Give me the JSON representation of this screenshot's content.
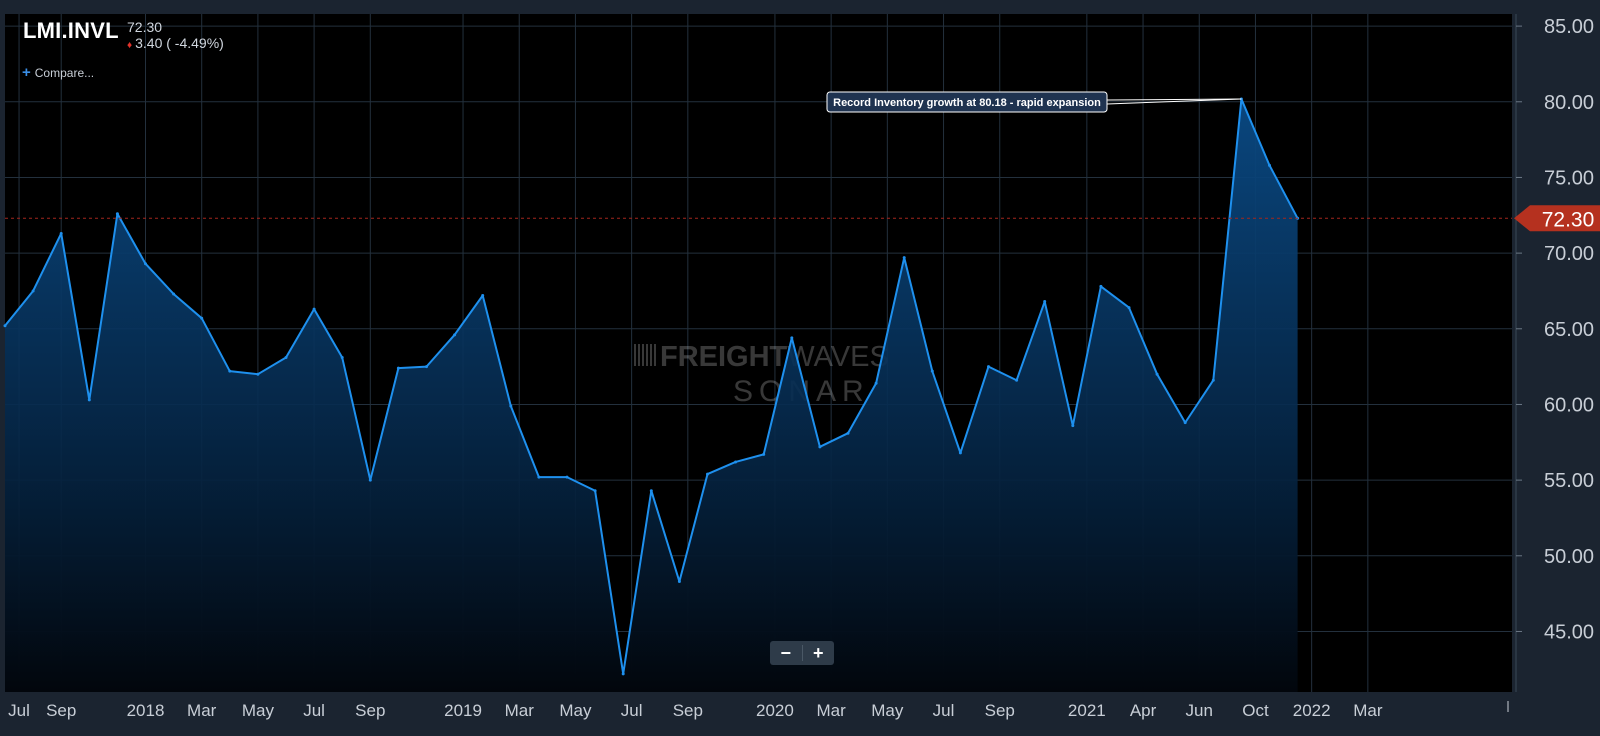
{
  "header": {
    "symbol": "LMI.INVL",
    "last_price": "72.30",
    "change": "3.40 ( -4.49%)",
    "compare_label": "Compare..."
  },
  "zoom": {
    "minus_label": "−",
    "plus_label": "+"
  },
  "watermark": {
    "line1_bold": "FREIGHT",
    "line1_light": "WAVES",
    "line2": "SONAR"
  },
  "colors": {
    "background": "#000000",
    "frame": "#1b2430",
    "line": "#1e90ee",
    "grid": "#23303d",
    "reference_line": "#a3261d",
    "price_tag": "#b5311f",
    "axis_text": "#c8ced6"
  },
  "chart_data": {
    "type": "area",
    "series": [
      {
        "values": [
          65.2,
          67.5,
          71.3,
          60.3,
          72.6,
          69.3,
          67.3,
          65.7,
          62.2,
          62.0,
          63.1,
          66.3,
          63.1,
          55.0,
          62.4,
          62.5,
          64.6,
          67.2,
          59.9,
          55.2,
          55.2,
          54.3,
          42.2,
          54.3,
          48.3,
          55.4,
          56.2,
          56.7,
          64.4,
          57.2,
          58.1,
          61.4,
          69.7,
          62.2,
          56.8,
          62.5,
          61.6,
          66.8,
          58.6,
          67.8,
          66.4,
          62.0,
          58.8,
          61.6,
          80.18,
          75.8,
          72.3
        ]
      }
    ],
    "y_axis": {
      "min": 41,
      "max": 85.8,
      "ticks": [
        "45.00",
        "50.00",
        "55.00",
        "60.00",
        "65.00",
        "70.00",
        "75.00",
        "80.00",
        "85.00"
      ]
    },
    "x_axis": {
      "ticks": [
        {
          "label": "Jul",
          "i": 0.5
        },
        {
          "label": "Sep",
          "i": 2
        },
        {
          "label": "2018",
          "i": 5
        },
        {
          "label": "Mar",
          "i": 7
        },
        {
          "label": "May",
          "i": 9
        },
        {
          "label": "Jul",
          "i": 11
        },
        {
          "label": "Sep",
          "i": 13
        },
        {
          "label": "2019",
          "i": 16.3
        },
        {
          "label": "Mar",
          "i": 18.3
        },
        {
          "label": "May",
          "i": 20.3
        },
        {
          "label": "Jul",
          "i": 22.3
        },
        {
          "label": "Sep",
          "i": 24.3
        },
        {
          "label": "2020",
          "i": 27.4
        },
        {
          "label": "Mar",
          "i": 29.4
        },
        {
          "label": "May",
          "i": 31.4
        },
        {
          "label": "Jul",
          "i": 33.4
        },
        {
          "label": "Sep",
          "i": 35.4
        },
        {
          "label": "2021",
          "i": 38.5
        },
        {
          "label": "Apr",
          "i": 40.5
        },
        {
          "label": "Jun",
          "i": 42.5
        },
        {
          "label": "Oct",
          "i": 44.5
        },
        {
          "label": "2022",
          "i": 46.5
        },
        {
          "label": "Mar",
          "i": 48.5
        }
      ]
    },
    "current_value": "72.30",
    "current_value_num": 72.3,
    "annotation": {
      "text": "Record Inventory growth at 80.18 - rapid expansion",
      "value": 80.18
    },
    "grid": true
  }
}
